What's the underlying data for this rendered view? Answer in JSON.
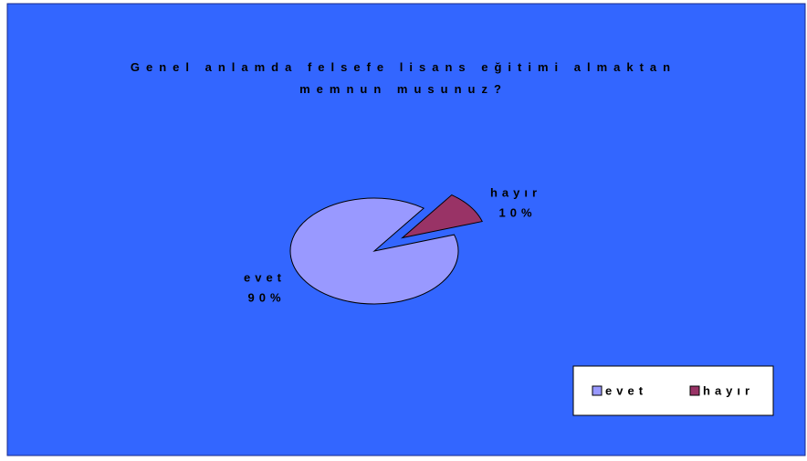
{
  "chart_data": {
    "type": "pie",
    "title": "Genel anlamda felsefe lisans eğitimi almaktan memnun musunuz?",
    "categories": [
      "evet",
      "hayır"
    ],
    "values": [
      90,
      10
    ],
    "value_labels": [
      "90%",
      "10%"
    ],
    "colors": [
      "#9999ff",
      "#993366"
    ],
    "legend": "bottom-right"
  }
}
